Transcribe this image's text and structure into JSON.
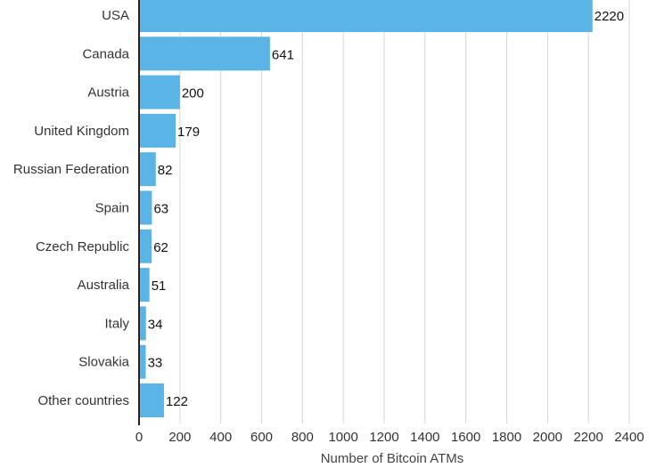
{
  "chart_data": {
    "type": "bar",
    "orientation": "horizontal",
    "categories": [
      "USA",
      "Canada",
      "Austria",
      "United Kingdom",
      "Russian Federation",
      "Spain",
      "Czech Republic",
      "Australia",
      "Italy",
      "Slovakia",
      "Other countries"
    ],
    "values": [
      2220,
      641,
      200,
      179,
      82,
      63,
      62,
      51,
      34,
      33,
      122
    ],
    "xticks": [
      0,
      200,
      400,
      600,
      800,
      1000,
      1200,
      1400,
      1600,
      1800,
      2000,
      2200,
      2400
    ],
    "xlim": [
      0,
      2400
    ],
    "xlabel": "Number of Bitcoin ATMs",
    "ylabel": "",
    "title": "",
    "grid": "vertical",
    "data_labels": true,
    "colors": {
      "bar": "#5ab4e5",
      "grid": "#d6d6d6",
      "axis": "#222222"
    }
  }
}
